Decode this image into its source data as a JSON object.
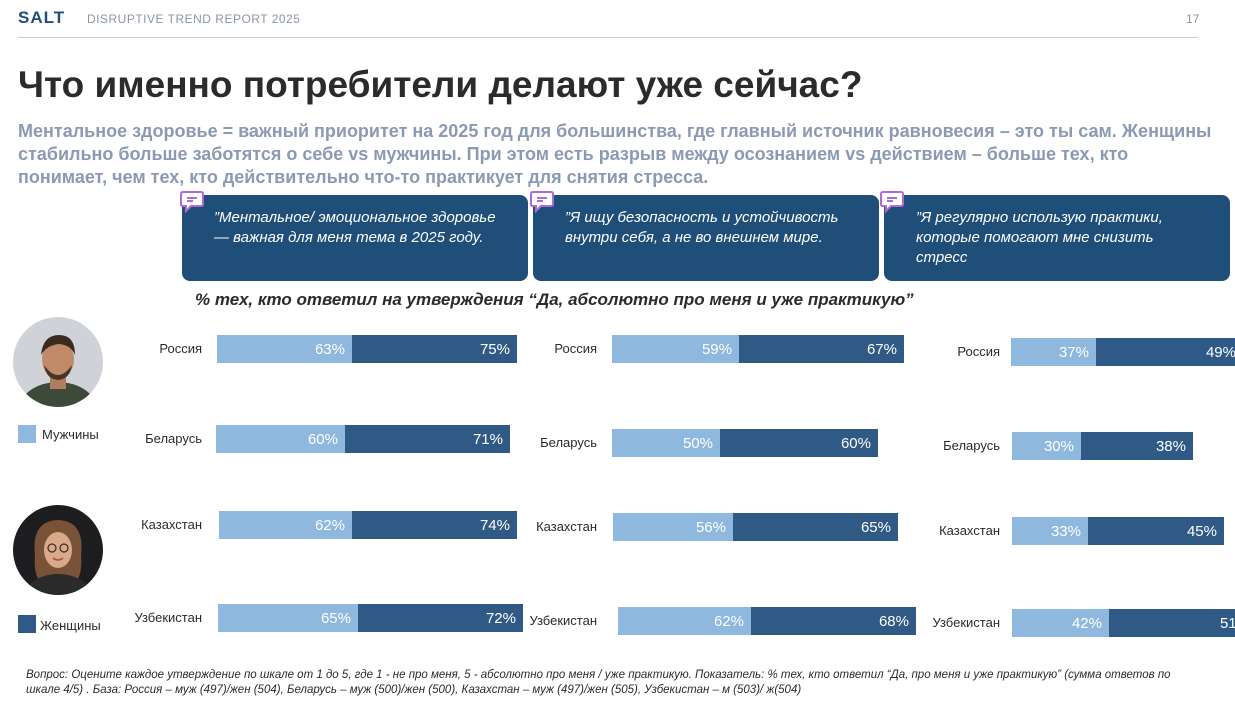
{
  "header": {
    "brand": "SALT",
    "report": "DISRUPTIVE TREND REPORT 2025",
    "page": "17"
  },
  "title": "Что именно потребители делают уже сейчас?",
  "subtitle": "Ментальное здоровье = важный приоритет на 2025 год для большинства, где главный источник равновесия – это ты сам. Женщины стабильно больше заботятся о себе vs мужчины. При этом есть разрыв между осознанием vs действием – больше тех, кто понимает, чем тех, кто действительно что-то практикует для снятия стресса.",
  "cards": [
    "”Ментальное/ эмоциональное здоровье — важная для меня тема в 2025 году.",
    "”Я ищу безопасность и устойчивость внутри себя, а не во внешнем мире.",
    "”Я регулярно использую практики, которые помогают мне снизить стресс"
  ],
  "legend": {
    "men": "Мужчины",
    "women": "Женщины"
  },
  "colors": {
    "men": "#8fb8de",
    "women": "#2f5a86",
    "card": "#1f4e79",
    "accent": "#b06ad6"
  },
  "chart_data": [
    {
      "type": "bar",
      "title": "% тех, кто ответил на утверждения “Да, абсолютно про меня и уже практикую”",
      "categories": [
        "Россия",
        "Беларусь",
        "Казахстан",
        "Узбекистан"
      ],
      "series": [
        {
          "name": "Мужчины",
          "values": [
            63,
            60,
            62,
            65
          ]
        },
        {
          "name": "Женщины",
          "values": [
            75,
            71,
            74,
            72
          ]
        }
      ]
    },
    {
      "type": "bar",
      "categories": [
        "Россия",
        "Беларусь",
        "Казахстан",
        "Узбекистан"
      ],
      "series": [
        {
          "name": "Мужчины",
          "values": [
            59,
            50,
            56,
            62
          ]
        },
        {
          "name": "Женщины",
          "values": [
            67,
            60,
            65,
            68
          ]
        }
      ]
    },
    {
      "type": "bar",
      "categories": [
        "Россия",
        "Беларусь",
        "Казахстан",
        "Узбекистан"
      ],
      "series": [
        {
          "name": "Мужчины",
          "values": [
            37,
            30,
            33,
            42
          ]
        },
        {
          "name": "Женщины",
          "values": [
            49,
            38,
            45,
            51
          ]
        }
      ]
    }
  ],
  "footnote": "Вопрос: Оцените каждое утверждение по шкале от 1 до 5, где 1 - не про меня, 5 - абсолютно про меня / уже практикую. Показатель: % тех, кто ответил “Да, про меня и уже практикую” (сумма ответов по шкале 4/5) . База: Россия – муж (497)/жен (504), Беларусь – муж (500)/жен (500), Казахстан – муж (497)/жен (505), Узбекистан – м (503)/ ж(504)"
}
